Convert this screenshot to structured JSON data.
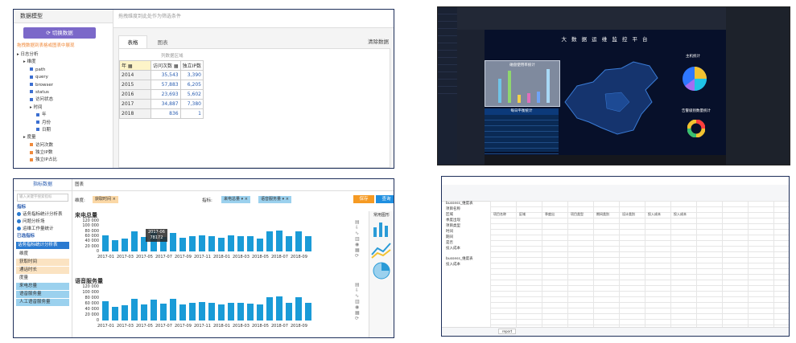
{
  "panelA": {
    "sidebar_title": "数据模型",
    "switch_button": "切换数据",
    "hint": "拖拽数据到表格或图表中展现",
    "tree": [
      {
        "label": "日志分析",
        "indent": 0,
        "type": "folder"
      },
      {
        "label": "维度",
        "indent": 1,
        "type": "folder"
      },
      {
        "label": "path",
        "indent": 2,
        "type": "dim"
      },
      {
        "label": "query",
        "indent": 2,
        "type": "dim"
      },
      {
        "label": "browser",
        "indent": 2,
        "type": "dim"
      },
      {
        "label": "status",
        "indent": 2,
        "type": "dim"
      },
      {
        "label": "访问状态",
        "indent": 2,
        "type": "dim"
      },
      {
        "label": "时间",
        "indent": 2,
        "type": "folder"
      },
      {
        "label": "年",
        "indent": 3,
        "type": "dim"
      },
      {
        "label": "月份",
        "indent": 3,
        "type": "dim"
      },
      {
        "label": "日期",
        "indent": 3,
        "type": "dim"
      },
      {
        "label": "度量",
        "indent": 1,
        "type": "folder"
      },
      {
        "label": "访问次数",
        "indent": 2,
        "type": "measure"
      },
      {
        "label": "独立IP数",
        "indent": 2,
        "type": "measure"
      },
      {
        "label": "独立IP占比",
        "indent": 2,
        "type": "measure"
      }
    ],
    "drop_hint": "拖拽维度到此处作为筛选条件",
    "tabs": [
      "表格",
      "图表"
    ],
    "clear": "清除数据",
    "col_zone": "列数据区域",
    "headers": [
      "年",
      "访问次数",
      "独立IP数"
    ],
    "rows": [
      {
        "year": "2014",
        "visits": "35,543",
        "ips": "3,390"
      },
      {
        "year": "2015",
        "visits": "57,883",
        "ips": "6,205"
      },
      {
        "year": "2016",
        "visits": "23,693",
        "ips": "5,602"
      },
      {
        "year": "2017",
        "visits": "34,887",
        "ips": "7,380"
      },
      {
        "year": "2018",
        "visits": "836",
        "ips": "1"
      }
    ]
  },
  "panelB": {
    "title": "大 数 据 运 维 监 控 平 台",
    "left_chart_title": "磁盘使用率统计",
    "table_title": "每日平衡统计",
    "right_title1": "主机统计",
    "right_title2": "告警级别数量统计",
    "colors": {
      "bg": "#07102a",
      "accent": "#2e77ff"
    }
  },
  "panelC": {
    "sidebar_title": "指标数据",
    "search_placeholder": "输入关键字搜索指标",
    "section1": "指标",
    "options": [
      "话务指标统计分析表",
      "问题分析场",
      "运维工作量统计"
    ],
    "section2": "已选指标",
    "selected": "话务指标统计分析表",
    "dim_label": "维度",
    "dims": [
      "获取时间",
      "通话时长"
    ],
    "measure_label": "度量",
    "measures": [
      "来电总量",
      "语音服务量",
      "人工语音服务量"
    ],
    "tab": "图表",
    "filter_label": "维度:",
    "filter_chip": "获取时间",
    "measure_filter_label": "指标:",
    "measure_chips": [
      "来电总量",
      "语音服务量"
    ],
    "btn_orange": "保存",
    "btn_blue": "查询",
    "chart1_title": "来电总量",
    "chart2_title": "语音服务量",
    "tooltip": [
      "2017-06",
      "78172"
    ],
    "y_ticks": [
      "120 000",
      "100 000",
      "80 000",
      "60 000",
      "40 000",
      "20 000",
      "0"
    ],
    "x_ticks": [
      "2017-01",
      "2017-03",
      "2017-05",
      "2017-07",
      "2017-09",
      "2017-11",
      "2018-01",
      "2018-03",
      "2018-05",
      "2018-07",
      "2018-09"
    ],
    "chart_panel_title": "常用图形"
  },
  "panelD": {
    "left_items1": [
      "bussess_维度表",
      "项目名称",
      "区域",
      "季度出现",
      "项目类型",
      "时间",
      "期间",
      "是否",
      "投入成本"
    ],
    "left_items2": [
      "bussess_维度表",
      "投入成本"
    ],
    "sheet_tab": "report",
    "header_row": [
      "项目名称",
      "区域",
      "季度出",
      "项目类型",
      "期间类别",
      "设计类别",
      "投入成本",
      "投入成本"
    ]
  },
  "chart_data": [
    {
      "type": "bar",
      "title": "来电总量",
      "categories": [
        "2017-01",
        "2017-02",
        "2017-03",
        "2017-04",
        "2017-05",
        "2017-06",
        "2017-07",
        "2017-08",
        "2017-09",
        "2017-10",
        "2017-11",
        "2017-12",
        "2018-01",
        "2018-02",
        "2018-03",
        "2018-04",
        "2018-05",
        "2018-06",
        "2018-07",
        "2018-08",
        "2018-09",
        "2018-10"
      ],
      "values": [
        62000,
        44000,
        52000,
        78000,
        56000,
        78172,
        57000,
        74000,
        54000,
        60000,
        63000,
        59000,
        54000,
        62000,
        60000,
        59000,
        52000,
        80000,
        82000,
        60000,
        80000,
        60000
      ],
      "ylim": [
        0,
        120000
      ]
    },
    {
      "type": "bar",
      "title": "语音服务量",
      "categories": [
        "2017-01",
        "2017-02",
        "2017-03",
        "2017-04",
        "2017-05",
        "2017-06",
        "2017-07",
        "2017-08",
        "2017-09",
        "2017-10",
        "2017-11",
        "2017-12",
        "2018-01",
        "2018-02",
        "2018-03",
        "2018-04",
        "2018-05",
        "2018-06",
        "2018-07",
        "2018-08",
        "2018-09",
        "2018-10"
      ],
      "values": [
        70000,
        48000,
        54000,
        76000,
        58000,
        74000,
        60000,
        76000,
        56000,
        62000,
        66000,
        62000,
        56000,
        64000,
        62000,
        60000,
        56000,
        82000,
        86000,
        64000,
        84000,
        62000
      ],
      "ylim": [
        0,
        120000
      ]
    }
  ]
}
